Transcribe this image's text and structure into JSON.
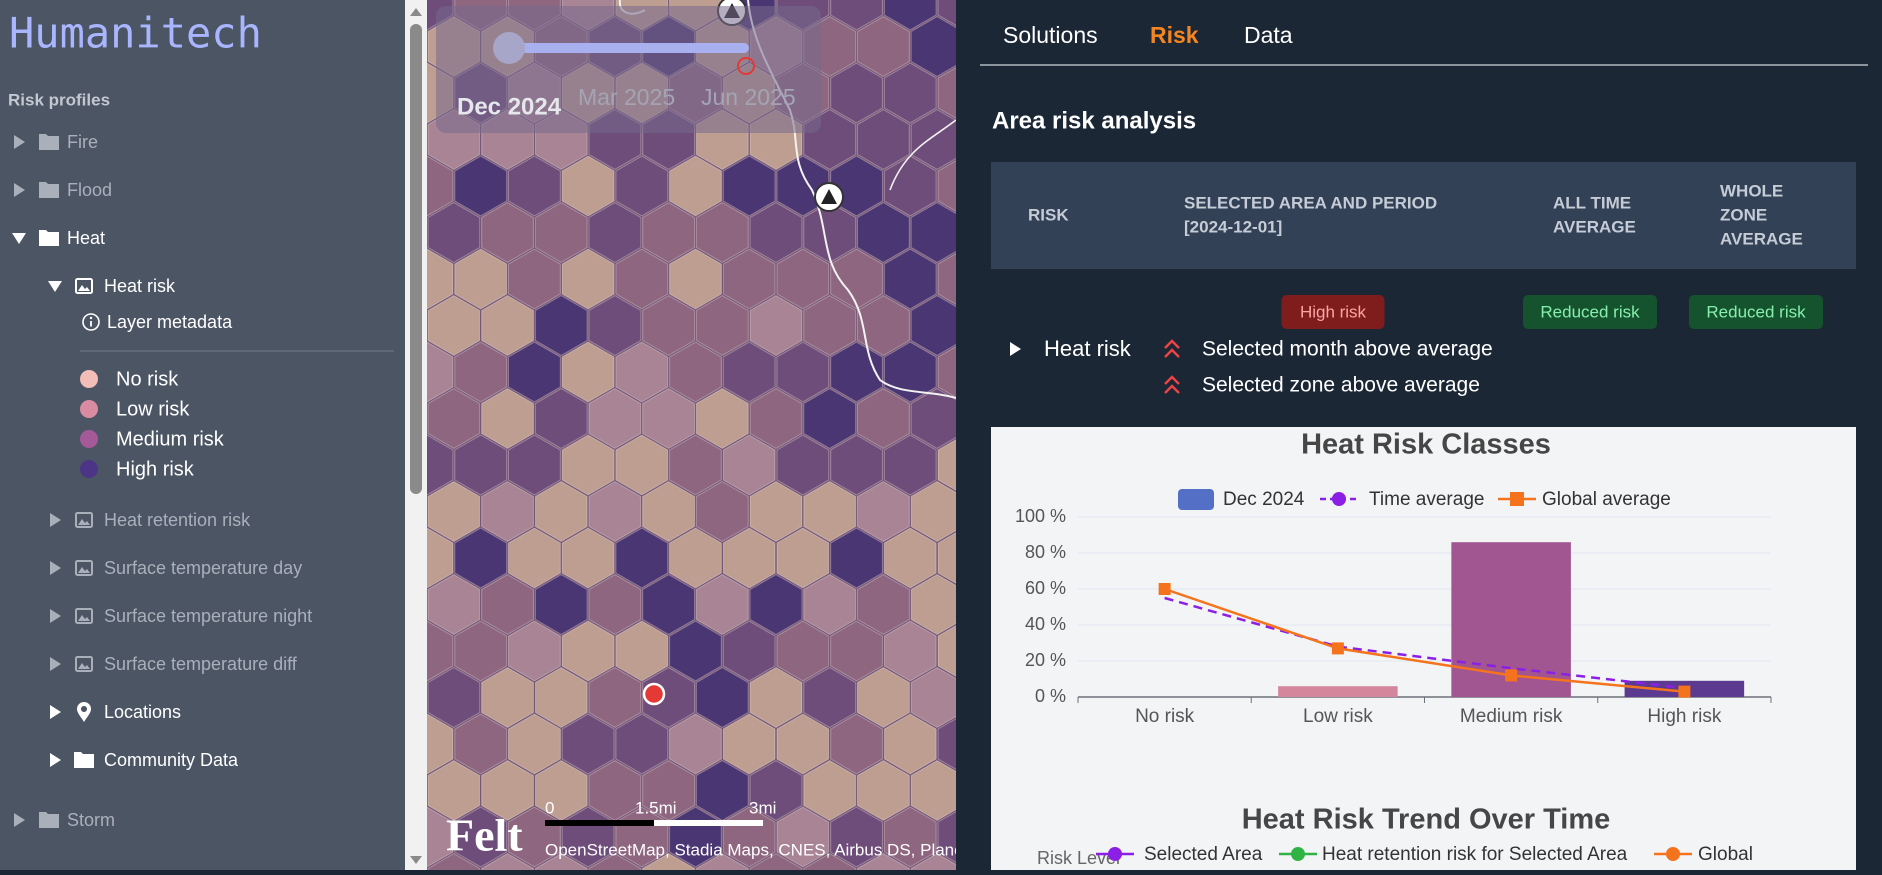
{
  "sidebar": {
    "title": "Humanitech",
    "section": "Risk profiles",
    "tree": [
      {
        "label": "Fire"
      },
      {
        "label": "Flood"
      },
      {
        "label": "Heat",
        "children": [
          {
            "label": "Heat risk",
            "children": [
              {
                "label": "Layer metadata"
              }
            ],
            "legend": [
              {
                "label": "No risk",
                "color": "#f3bdb8"
              },
              {
                "label": "Low risk",
                "color": "#d98ba2"
              },
              {
                "label": "Medium risk",
                "color": "#a45a98"
              },
              {
                "label": "High risk",
                "color": "#4c3586"
              }
            ]
          },
          {
            "label": "Heat retention risk"
          },
          {
            "label": "Surface temperature day"
          },
          {
            "label": "Surface temperature night"
          },
          {
            "label": "Surface temperature diff"
          },
          {
            "label": "Locations"
          },
          {
            "label": "Community Data"
          }
        ]
      },
      {
        "label": "Storm"
      }
    ]
  },
  "map": {
    "timeline": {
      "current": "Dec 2024",
      "ticks": [
        "Mar 2025",
        "Jun 2025"
      ]
    },
    "scale": [
      "0",
      "1.5mi",
      "3mi"
    ],
    "logo": "Felt",
    "attribution": "OpenStreetMap, Stadia Maps, CNES, Airbus DS, PlanetObserver"
  },
  "tabs": [
    {
      "label": "Solutions",
      "active": false
    },
    {
      "label": "Risk",
      "active": true
    },
    {
      "label": "Data",
      "active": false
    }
  ],
  "analysis": {
    "title": "Area risk analysis",
    "columns": [
      [
        "RISK"
      ],
      [
        "SELECTED AREA AND PERIOD",
        "[2024-12-01]"
      ],
      [
        "ALL TIME",
        "AVERAGE"
      ],
      [
        "WHOLE",
        "ZONE",
        "AVERAGE"
      ]
    ],
    "rows": [
      {
        "risk": "Heat risk",
        "selected": "High risk",
        "all_time": "Reduced risk",
        "whole_zone": "Reduced risk",
        "notes": [
          "Selected month above average",
          "Selected zone above average"
        ]
      }
    ]
  },
  "chart_data": [
    {
      "type": "bar",
      "title": "Heat Risk Classes",
      "categories": [
        "No risk",
        "Low risk",
        "Medium risk",
        "High risk"
      ],
      "series": [
        {
          "name": "Dec 2024",
          "type": "bar",
          "color": "#5470c6",
          "colors": [
            "#f3b9b3",
            "#d4869c",
            "#a15691",
            "#5b3a8f"
          ],
          "values": [
            0,
            6,
            86,
            9
          ]
        },
        {
          "name": "Time average",
          "type": "line",
          "color": "#8b1fe6",
          "line_style": "dashed",
          "symbol": "circle",
          "show_symbol": false,
          "values": [
            55,
            28,
            16,
            5
          ]
        },
        {
          "name": "Global average",
          "type": "line",
          "color": "#f5731c",
          "line_style": "solid",
          "symbol": "square",
          "show_symbol": true,
          "values": [
            60,
            27,
            12,
            3
          ]
        }
      ],
      "ylim": [
        0,
        100
      ],
      "yticks": [
        {
          "value": 0,
          "label": "0 %"
        },
        {
          "value": 20,
          "label": "20 %"
        },
        {
          "value": 40,
          "label": "40 %"
        },
        {
          "value": 60,
          "label": "60 %"
        },
        {
          "value": 80,
          "label": "80 %"
        },
        {
          "value": 100,
          "label": "100 %"
        }
      ],
      "grid": true
    },
    {
      "type": "line",
      "title": "Heat Risk Trend Over Time",
      "y_label": "Risk Level",
      "series": [
        {
          "name": "Selected Area",
          "color": "#8b1fe6",
          "symbol": "circle"
        },
        {
          "name": "Heat retention risk for Selected Area",
          "color": "#2fb344",
          "symbol": "circle"
        },
        {
          "name": "Global",
          "color": "#f5731c",
          "symbol": "circle"
        }
      ]
    }
  ]
}
